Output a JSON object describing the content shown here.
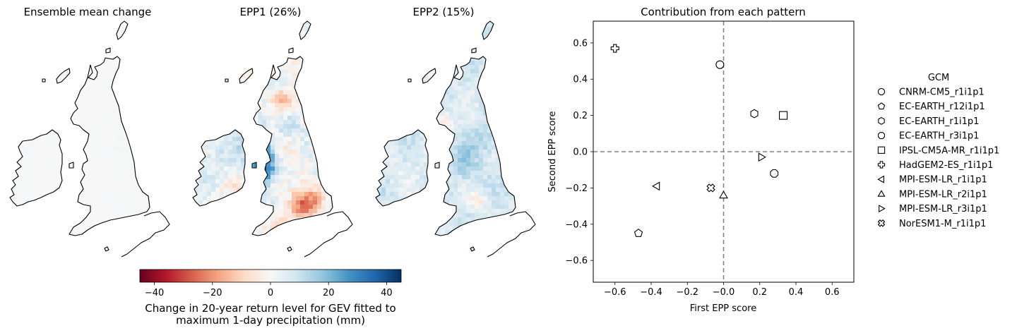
{
  "maps": {
    "panels": [
      {
        "title": "Ensemble mean change",
        "intensity": 0.08
      },
      {
        "title": "EPP1 (26%)",
        "intensity": 1.0
      },
      {
        "title": "EPP2 (15%)",
        "intensity": 0.7
      }
    ],
    "colorbar": {
      "ticks": [
        "−40",
        "−20",
        "0",
        "20",
        "40"
      ],
      "tick_values": [
        -40,
        -20,
        0,
        20,
        40
      ],
      "range": [
        -45,
        45
      ],
      "label_line1": "Change in 20-year return level for GEV fitted to",
      "label_line2": "maximum 1-day precipitation (mm)",
      "colormap": "RdBu",
      "colors": [
        "#67001f",
        "#b2182b",
        "#d6604d",
        "#f4a582",
        "#fddbc7",
        "#f7f7f7",
        "#d1e5f0",
        "#92c5de",
        "#4393c3",
        "#2166ac",
        "#053061"
      ]
    }
  },
  "chart_data": {
    "type": "scatter",
    "title": "Contribution from each pattern",
    "xlabel": "First EPP score",
    "ylabel": "Second EPP score",
    "xlim": [
      -0.72,
      0.72
    ],
    "ylim": [
      -0.72,
      0.72
    ],
    "xticks": [
      "−0.6",
      "−0.4",
      "−0.2",
      "−0.0",
      "0.2",
      "0.4",
      "0.6"
    ],
    "xtick_values": [
      -0.6,
      -0.4,
      -0.2,
      0.0,
      0.2,
      0.4,
      0.6
    ],
    "yticks": [
      "−0.6",
      "−0.4",
      "−0.2",
      "0.0",
      "0.2",
      "0.4",
      "0.6"
    ],
    "ytick_values": [
      -0.6,
      -0.4,
      -0.2,
      0.0,
      0.2,
      0.4,
      0.6
    ],
    "reference_lines": {
      "x": 0,
      "y": 0,
      "style": "dashed",
      "color": "#808080"
    },
    "legend_title": "GCM",
    "legend_position": "right",
    "series": [
      {
        "name": "CNRM-CM5_r1i1p1",
        "marker": "circle",
        "x": -0.02,
        "y": 0.48
      },
      {
        "name": "EC-EARTH_r12i1p1",
        "marker": "pentagon",
        "x": -0.47,
        "y": -0.45
      },
      {
        "name": "EC-EARTH_r1i1p1",
        "marker": "hexagon",
        "x": 0.17,
        "y": 0.21
      },
      {
        "name": "EC-EARTH_r3i1p1",
        "marker": "octagon",
        "x": 0.28,
        "y": -0.12
      },
      {
        "name": "IPSL-CM5A-MR_r1i1p1",
        "marker": "square",
        "x": 0.33,
        "y": 0.2
      },
      {
        "name": "HadGEM2-ES_r1i1p1",
        "marker": "plus",
        "x": -0.6,
        "y": 0.57
      },
      {
        "name": "MPI-ESM-LR_r1i1p1",
        "marker": "triangle-left",
        "x": -0.37,
        "y": -0.19
      },
      {
        "name": "MPI-ESM-LR_r2i1p1",
        "marker": "triangle-up",
        "x": 0.0,
        "y": -0.24
      },
      {
        "name": "MPI-ESM-LR_r3i1p1",
        "marker": "triangle-right",
        "x": 0.21,
        "y": -0.03
      },
      {
        "name": "NorESM1-M_r1i1p1",
        "marker": "x-filled",
        "x": -0.07,
        "y": -0.2
      }
    ]
  }
}
